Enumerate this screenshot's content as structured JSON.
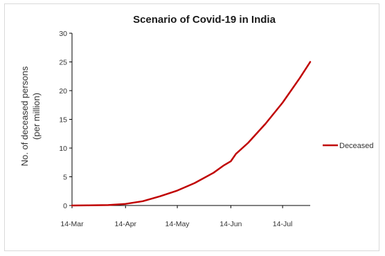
{
  "chart_data": {
    "type": "line",
    "title": "Scenario of Covid-19 in India",
    "ylabel_line1": "No. of deceased persons",
    "ylabel_line2": "(per million)",
    "xlabel": "",
    "x_ticks": [
      "14-Mar",
      "14-Apr",
      "14-May",
      "14-Jun",
      "14-Jul"
    ],
    "y_ticks": [
      "0",
      "5",
      "10",
      "15",
      "20",
      "25",
      "30"
    ],
    "ylim": [
      0,
      30
    ],
    "xlim": [
      "14-Mar",
      "30-Jul"
    ],
    "legend_position": "right",
    "series": [
      {
        "name": "Deceased",
        "color": "#c00000",
        "x": [
          "14-Mar",
          "24-Mar",
          "4-Apr",
          "14-Apr",
          "24-Apr",
          "4-May",
          "14-May",
          "24-May",
          "4-Jun",
          "10-Jun",
          "14-Jun",
          "17-Jun",
          "24-Jun",
          "4-Jul",
          "14-Jul",
          "24-Jul",
          "30-Jul"
        ],
        "values": [
          0,
          0.02,
          0.07,
          0.28,
          0.75,
          1.6,
          2.6,
          3.9,
          5.7,
          7.0,
          7.7,
          9.0,
          10.9,
          14.2,
          17.9,
          22.2,
          25
        ]
      }
    ]
  }
}
